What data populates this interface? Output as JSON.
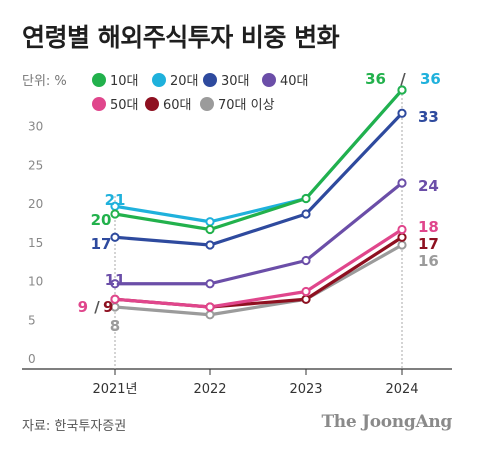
{
  "title": "연령별 해외주식투자 비중 변화",
  "unit_label": "단위: %",
  "source": "자료: 한국투자증권",
  "brand": "The JoongAng",
  "chart_data": {
    "type": "line",
    "x": [
      "2021년",
      "2022",
      "2023",
      "2024"
    ],
    "ylim": [
      0,
      35
    ],
    "yticks": [
      0,
      5,
      10,
      15,
      20,
      25,
      30
    ],
    "grid": false,
    "legend_position": "top",
    "series": [
      {
        "name": "10대",
        "color": "#22b14c",
        "values": [
          20,
          18,
          22,
          36
        ]
      },
      {
        "name": "20대",
        "color": "#1fb1dc",
        "values": [
          21,
          19,
          22,
          36
        ]
      },
      {
        "name": "30대",
        "color": "#2e4a9e",
        "values": [
          17,
          16,
          20,
          33
        ]
      },
      {
        "name": "40대",
        "color": "#6b4ea8",
        "values": [
          11,
          11,
          14,
          24
        ]
      },
      {
        "name": "50대",
        "color": "#e0468c",
        "values": [
          9,
          8,
          10,
          18
        ]
      },
      {
        "name": "60대",
        "color": "#8e1020",
        "values": [
          9,
          8,
          9,
          17
        ]
      },
      {
        "name": "70대 이상",
        "color": "#9b9b9b",
        "values": [
          8,
          7,
          9,
          16
        ]
      }
    ],
    "data_labels": [
      {
        "text": "21",
        "color": "#1fb1dc"
      },
      {
        "text": "20",
        "color": "#22b14c"
      },
      {
        "text": "17",
        "color": "#2e4a9e"
      },
      {
        "text": "11",
        "color": "#6b4ea8"
      },
      {
        "text": "9",
        "color": "#e0468c"
      },
      {
        "text": "/",
        "color": "#555555"
      },
      {
        "text": "9",
        "color": "#8e1020"
      },
      {
        "text": "8",
        "color": "#9b9b9b"
      },
      {
        "text": "36",
        "color": "#22b14c"
      },
      {
        "text": "/",
        "color": "#555555"
      },
      {
        "text": "36",
        "color": "#1fb1dc"
      },
      {
        "text": "33",
        "color": "#2e4a9e"
      },
      {
        "text": "24",
        "color": "#6b4ea8"
      },
      {
        "text": "18",
        "color": "#e0468c"
      },
      {
        "text": "17",
        "color": "#8e1020"
      },
      {
        "text": "16",
        "color": "#9b9b9b"
      }
    ]
  }
}
